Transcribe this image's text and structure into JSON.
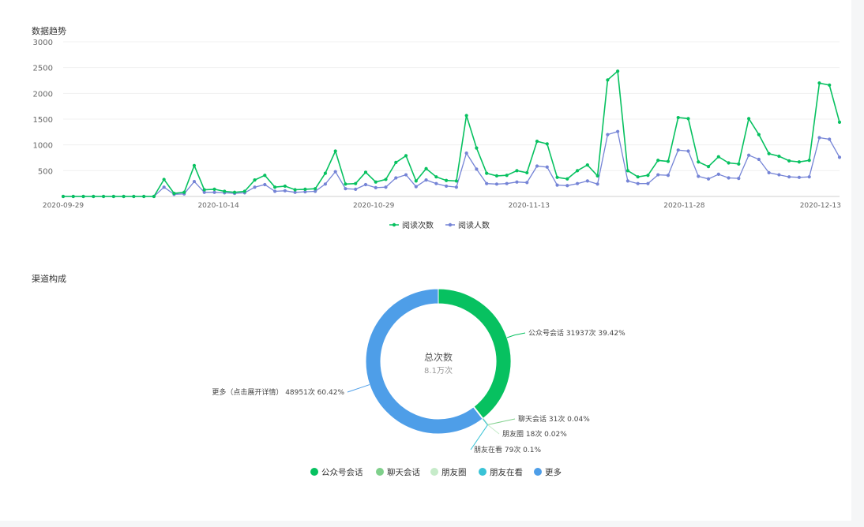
{
  "trend": {
    "section_title": "数据趋势"
  },
  "channel": {
    "section_title": "渠道构成"
  },
  "chart_data": [
    {
      "type": "line",
      "title": "数据趋势",
      "ylim": [
        0,
        3000
      ],
      "yticks": [
        500,
        1000,
        1500,
        2000,
        2500,
        3000
      ],
      "xtick_labels": [
        "2020-09-29",
        "2020-10-14",
        "2020-10-29",
        "2020-11-13",
        "2020-11-28",
        "2020-12-13"
      ],
      "x_start": "2020-09-29",
      "x_end": "2020-12-13",
      "grid": true,
      "legend_position": "bottom",
      "series": [
        {
          "name": "阅读次数",
          "color": "#07c160",
          "values": [
            0,
            0,
            0,
            0,
            0,
            0,
            0,
            0,
            0,
            0,
            330,
            60,
            80,
            600,
            130,
            140,
            100,
            80,
            100,
            320,
            410,
            180,
            200,
            130,
            140,
            150,
            450,
            880,
            240,
            250,
            470,
            280,
            330,
            660,
            790,
            300,
            540,
            380,
            310,
            300,
            1570,
            940,
            450,
            400,
            410,
            500,
            460,
            1070,
            1020,
            370,
            340,
            500,
            610,
            400,
            2260,
            2430,
            500,
            380,
            410,
            700,
            680,
            1530,
            1510,
            670,
            580,
            770,
            650,
            630,
            1510,
            1200,
            830,
            780,
            690,
            670,
            700,
            2200,
            2160,
            1440
          ]
        },
        {
          "name": "阅读人数",
          "color": "#7584d6",
          "values": [
            0,
            0,
            0,
            0,
            0,
            0,
            0,
            0,
            0,
            0,
            180,
            40,
            50,
            290,
            80,
            80,
            70,
            60,
            70,
            180,
            230,
            100,
            110,
            80,
            90,
            100,
            240,
            480,
            150,
            140,
            230,
            170,
            180,
            360,
            420,
            190,
            320,
            250,
            200,
            180,
            840,
            530,
            250,
            240,
            250,
            280,
            270,
            590,
            570,
            220,
            210,
            250,
            300,
            240,
            1200,
            1260,
            300,
            250,
            250,
            420,
            410,
            900,
            880,
            390,
            340,
            430,
            360,
            350,
            800,
            720,
            460,
            420,
            380,
            370,
            380,
            1140,
            1110,
            760
          ]
        }
      ]
    },
    {
      "type": "pie",
      "title": "渠道构成",
      "center_label": "总次数",
      "center_value": "8.1万次",
      "legend_position": "bottom",
      "slices": [
        {
          "name": "公众号会话",
          "value": 31937,
          "percent": 39.42,
          "color": "#07c160",
          "label": "公众号会话 31937次 39.42%"
        },
        {
          "name": "聊天会话",
          "value": 31,
          "percent": 0.04,
          "color": "#7fd08b",
          "label": "聊天会话 31次 0.04%"
        },
        {
          "name": "朋友圈",
          "value": 18,
          "percent": 0.02,
          "color": "#c6ebc9",
          "label": "朋友圈 18次 0.02%"
        },
        {
          "name": "朋友在看",
          "value": 79,
          "percent": 0.1,
          "color": "#39c3d6",
          "label": "朋友在看 79次 0.1%"
        },
        {
          "name": "更多",
          "value": 48951,
          "percent": 60.42,
          "color": "#4e9ee8",
          "label": "更多（点击展开详情） 48951次 60.42%"
        }
      ],
      "legend": [
        "公众号会话",
        "聊天会话",
        "朋友圈",
        "朋友在看",
        "更多"
      ]
    }
  ]
}
